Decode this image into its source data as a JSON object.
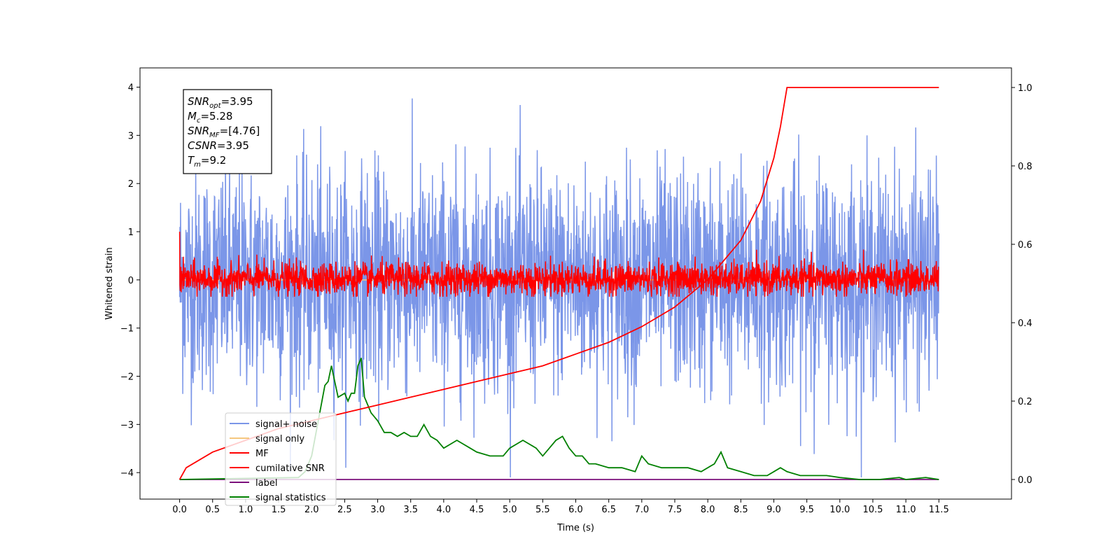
{
  "chart_data": {
    "type": "line",
    "xlabel": "Time (s)",
    "ylabel_left": "Whitened strain",
    "ylabel_right": "",
    "xlim": [
      -0.6,
      12.6
    ],
    "ylim_left": [
      -4.55,
      4.4
    ],
    "ylim_right": [
      -0.05,
      1.05
    ],
    "x_ticks": [
      "0.0",
      "0.5",
      "1.0",
      "1.5",
      "2.0",
      "2.5",
      "3.0",
      "3.5",
      "4.0",
      "4.5",
      "5.0",
      "5.5",
      "6.0",
      "6.5",
      "7.0",
      "7.5",
      "8.0",
      "8.5",
      "9.0",
      "9.5",
      "10.0",
      "10.5",
      "11.0",
      "11.5"
    ],
    "y_left_ticks": [
      "4",
      "3",
      "2",
      "1",
      "0",
      "−1",
      "−2",
      "−3",
      "−4"
    ],
    "y_right_ticks": [
      "1.0",
      "0.8",
      "0.6",
      "0.4",
      "0.2",
      "0.0"
    ],
    "grid": false,
    "legend_position": "lower-left",
    "annotation": {
      "lines": [
        {
          "name": "SNR",
          "sub": "opt",
          "value": "=3.95"
        },
        {
          "name": "M",
          "sub": "c",
          "value": "=5.28"
        },
        {
          "name": "SNR",
          "sub": "MF",
          "value": "=[4.76]"
        },
        {
          "name": "CSNR",
          "sub": "",
          "value": "=3.95"
        },
        {
          "name": "T",
          "sub": "m",
          "value": "=9.2"
        }
      ]
    },
    "series": [
      {
        "name": "signal+ noise",
        "color": "#7b96e8",
        "axis": "left",
        "description_shape": "noise",
        "amplitude_band": [
          -2.8,
          3.0
        ],
        "extremes": [
          -4.1,
          4.0
        ]
      },
      {
        "name": "signal only",
        "color": "#f5c77e",
        "axis": "left",
        "approx_constant": 0.0
      },
      {
        "name": "MF",
        "color": "#ff0000",
        "axis": "left",
        "description_shape": "noise",
        "amplitude_band": [
          -0.35,
          0.45
        ],
        "extremes": [
          -0.35,
          1.0
        ]
      },
      {
        "name": "cumilative SNR",
        "color": "#ff0000",
        "axis": "right",
        "x": [
          0.0,
          0.1,
          0.5,
          1.0,
          1.5,
          2.0,
          2.5,
          3.0,
          3.5,
          4.0,
          4.5,
          5.0,
          5.5,
          6.0,
          6.5,
          7.0,
          7.5,
          8.0,
          8.5,
          8.8,
          9.0,
          9.1,
          9.2,
          11.5,
          11.5
        ],
        "y": [
          0.0,
          0.03,
          0.07,
          0.1,
          0.13,
          0.15,
          0.17,
          0.19,
          0.21,
          0.23,
          0.25,
          0.27,
          0.29,
          0.32,
          0.35,
          0.39,
          0.44,
          0.51,
          0.61,
          0.71,
          0.82,
          0.9,
          1.0,
          1.0,
          1.0
        ]
      },
      {
        "name": "label",
        "color": "#7b0f7b",
        "axis": "right",
        "x": [
          0.0,
          11.5
        ],
        "y": [
          0.0,
          0.0
        ]
      },
      {
        "name": "signal statistics",
        "color": "#008000",
        "axis": "right",
        "x": [
          0.0,
          1.8,
          1.9,
          2.0,
          2.1,
          2.2,
          2.25,
          2.3,
          2.35,
          2.4,
          2.5,
          2.55,
          2.6,
          2.65,
          2.7,
          2.75,
          2.8,
          2.9,
          3.0,
          3.1,
          3.2,
          3.3,
          3.4,
          3.5,
          3.6,
          3.7,
          3.8,
          3.9,
          4.0,
          4.1,
          4.2,
          4.3,
          4.4,
          4.5,
          4.7,
          4.9,
          5.0,
          5.1,
          5.2,
          5.3,
          5.4,
          5.5,
          5.6,
          5.7,
          5.8,
          5.9,
          6.0,
          6.1,
          6.2,
          6.3,
          6.5,
          6.7,
          6.9,
          7.0,
          7.1,
          7.3,
          7.5,
          7.7,
          7.9,
          8.1,
          8.2,
          8.3,
          8.5,
          8.7,
          8.9,
          9.0,
          9.1,
          9.2,
          9.4,
          9.6,
          9.8,
          10.0,
          10.3,
          10.6,
          10.9,
          11.0,
          11.3,
          11.5
        ],
        "y": [
          0.0,
          0.005,
          0.02,
          0.06,
          0.15,
          0.24,
          0.25,
          0.29,
          0.25,
          0.21,
          0.22,
          0.2,
          0.22,
          0.22,
          0.29,
          0.31,
          0.21,
          0.17,
          0.15,
          0.12,
          0.12,
          0.11,
          0.12,
          0.11,
          0.11,
          0.14,
          0.11,
          0.1,
          0.08,
          0.09,
          0.1,
          0.09,
          0.08,
          0.07,
          0.06,
          0.06,
          0.08,
          0.09,
          0.1,
          0.09,
          0.08,
          0.06,
          0.08,
          0.1,
          0.11,
          0.08,
          0.06,
          0.06,
          0.04,
          0.04,
          0.03,
          0.03,
          0.02,
          0.06,
          0.04,
          0.03,
          0.03,
          0.03,
          0.02,
          0.04,
          0.07,
          0.03,
          0.02,
          0.01,
          0.01,
          0.02,
          0.03,
          0.02,
          0.01,
          0.01,
          0.01,
          0.005,
          0.0,
          0.0,
          0.005,
          0.0,
          0.005,
          0.0
        ]
      }
    ]
  }
}
